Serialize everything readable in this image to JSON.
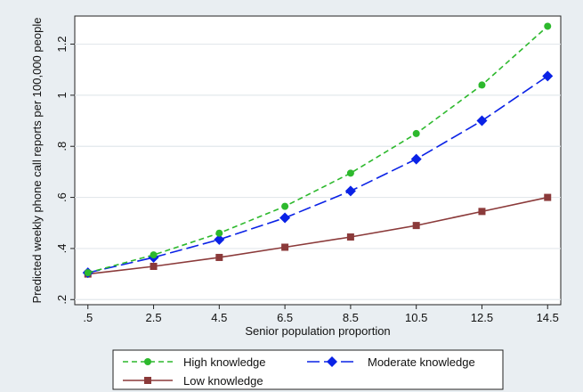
{
  "chart_data": {
    "type": "line",
    "title": "",
    "xlabel": "Senior population proportion",
    "ylabel": "Predicted weekly phone call reports per 100,000 people",
    "x": [
      0.5,
      2.5,
      4.5,
      6.5,
      8.5,
      10.5,
      12.5,
      14.5
    ],
    "x_tick_labels": [
      ".5",
      "2.5",
      "4.5",
      "6.5",
      "8.5",
      "10.5",
      "12.5",
      "14.5"
    ],
    "y_ticks": [
      0.2,
      0.4,
      0.6,
      0.8,
      1.0,
      1.2
    ],
    "y_tick_labels": [
      ".2",
      ".4",
      ".6",
      ".8",
      "1",
      "1.2"
    ],
    "xlim": [
      0.1,
      14.9
    ],
    "ylim": [
      0.18,
      1.31
    ],
    "grid": "horizontal",
    "legend_position": "bottom",
    "series": [
      {
        "name": "High knowledge",
        "color": "#2db92d",
        "marker": "circle",
        "dash": "dashed",
        "values": [
          0.305,
          0.375,
          0.46,
          0.565,
          0.695,
          0.85,
          1.04,
          1.27
        ]
      },
      {
        "name": "Moderate knowledge",
        "color": "#0a22e6",
        "marker": "diamond",
        "dash": "long-dash",
        "values": [
          0.305,
          0.365,
          0.435,
          0.52,
          0.625,
          0.75,
          0.9,
          1.075
        ]
      },
      {
        "name": "Low knowledge",
        "color": "#8b3a3a",
        "marker": "square",
        "dash": "solid",
        "values": [
          0.3,
          0.33,
          0.365,
          0.405,
          0.445,
          0.49,
          0.545,
          0.6
        ]
      }
    ]
  }
}
